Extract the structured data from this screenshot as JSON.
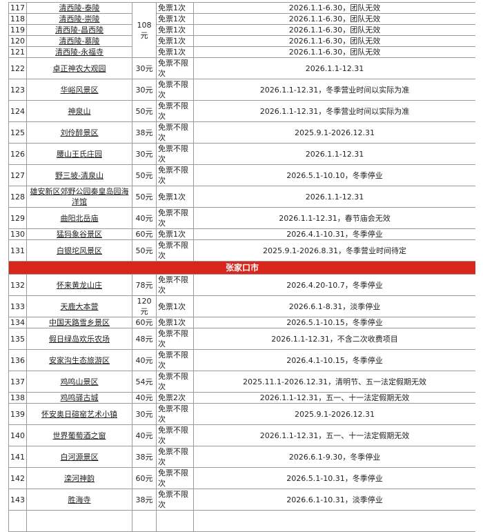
{
  "table": {
    "rows": [
      {
        "no": "117",
        "name": "清西陵-泰陵",
        "price": "108元",
        "ticket": "免票1次",
        "note": "2026.1.1-6.30，团队无效"
      },
      {
        "no": "118",
        "name": "清西陵-崇陵",
        "ticket": "免票1次",
        "note": "2026.1.1-6.30，团队无效"
      },
      {
        "no": "119",
        "name": "清西陵-昌西陵",
        "ticket": "免票1次",
        "note": "2026.1.1-6.30，团队无效"
      },
      {
        "no": "120",
        "name": "清西陵-慕陵",
        "ticket": "免票1次",
        "note": "2026.1.1-6.30，团队无效"
      },
      {
        "no": "121",
        "name": "清西陵-永福寺",
        "ticket": "免票1次",
        "note": "2026.1.1-6.30，团队无效"
      },
      {
        "no": "122",
        "name": "卓正神农大观园",
        "price": "30元",
        "ticket": "免票不限次",
        "note": "2026.1.1-12.31"
      },
      {
        "no": "123",
        "name": "华峪风景区",
        "price": "30元",
        "ticket": "免票不限次",
        "note": "2026.1.1-12.31，冬季营业时间以实际为准"
      },
      {
        "no": "124",
        "name": "神泉山",
        "price": "50元",
        "ticket": "免票不限次",
        "note": "2026.1.1-12.31，冬季营业时间以实际为准"
      },
      {
        "no": "125",
        "name": "刘伶醉景区",
        "price": "38元",
        "ticket": "免票不限次",
        "note": "2025.9.1-2026.12.31"
      },
      {
        "no": "126",
        "name": "腰山王氏庄园",
        "price": "30元",
        "ticket": "免票不限次",
        "note": "2026.1.1-12.31"
      },
      {
        "no": "127",
        "name": "野三坡-清泉山",
        "price": "50元",
        "ticket": "免票不限次",
        "note": "2026.5.1-10.10，冬季停业"
      },
      {
        "no": "128",
        "name": "雄安新区郊野公园秦皇岛园海洋馆",
        "price": "50元",
        "ticket": "免票1次",
        "note": "2026.1.1-12.31"
      },
      {
        "no": "129",
        "name": "曲阳北岳庙",
        "price": "40元",
        "ticket": "免票不限次",
        "note": "2026.1.1-12.31，春节庙会无效"
      },
      {
        "no": "130",
        "name": "猛犸象谷景区",
        "price": "60元",
        "ticket": "免票1次",
        "note": "2026.4.1-10.31，冬季停业"
      },
      {
        "no": "131",
        "name": "白银坨风景区",
        "price": "50元",
        "ticket": "免票不限次",
        "note": "2025.9.1-2026.8.31，冬季营业时间待定"
      },
      {
        "section": "张家口市"
      },
      {
        "no": "132",
        "name": "怀来黄龙山庄",
        "price": "78元",
        "ticket": "免票不限次",
        "note": "2026.4.20-10.7，冬季停业"
      },
      {
        "no": "133",
        "name": "天鹿大本营",
        "price": "120元",
        "ticket": "免票1次",
        "note": "2026.6.1-8.31，淡季停业"
      },
      {
        "no": "134",
        "name": "中国天路雪乡景区",
        "price": "60元",
        "ticket": "免票1次",
        "note": "2026.5.1-10.15，冬季停业"
      },
      {
        "no": "135",
        "name": "假日绿岛欢乐农场",
        "price": "48元",
        "ticket": "免票不限次",
        "note": "2026.1.1-12.31，不含二次收费项目"
      },
      {
        "no": "136",
        "name": "安家沟生态旅游区",
        "price": "40元",
        "ticket": "免票不限次",
        "note": "2026.4.1-10.15，冬季停业"
      },
      {
        "no": "137",
        "name": "鸡鸣山景区",
        "price": "54元",
        "ticket": "免票不限次",
        "note": "2025.11.1-2026.12.31，清明节、五一法定假期无效"
      },
      {
        "no": "138",
        "name": "鸡鸣驿古城",
        "price": "40元",
        "ticket": "免票2次",
        "note": "2026.1.1-12.31，五一、十一法定假期无效"
      },
      {
        "no": "139",
        "name": "怀安奥日碹窑艺术小镇",
        "price": "30元",
        "ticket": "免票不限次",
        "note": "2025.9.1-2026.12.31"
      },
      {
        "no": "140",
        "name": "世界葡萄酒之窗",
        "price": "40元",
        "ticket": "免票不限次",
        "note": "2026.1.1-12.31，五一、十一法定假期无效"
      },
      {
        "no": "141",
        "name": "白河源景区",
        "price": "38元",
        "ticket": "免票不限次",
        "note": "2026.6.1-9.30，冬季停业"
      },
      {
        "no": "142",
        "name": "滦河神韵",
        "price": "60元",
        "ticket": "免票不限次",
        "note": "2026.5.1-10.31，冬季停业"
      },
      {
        "no": "143",
        "name": "胜海寺",
        "price": "38元",
        "ticket": "免票不限次",
        "note": "2026.6.1-10.31，淡季停业"
      }
    ]
  }
}
